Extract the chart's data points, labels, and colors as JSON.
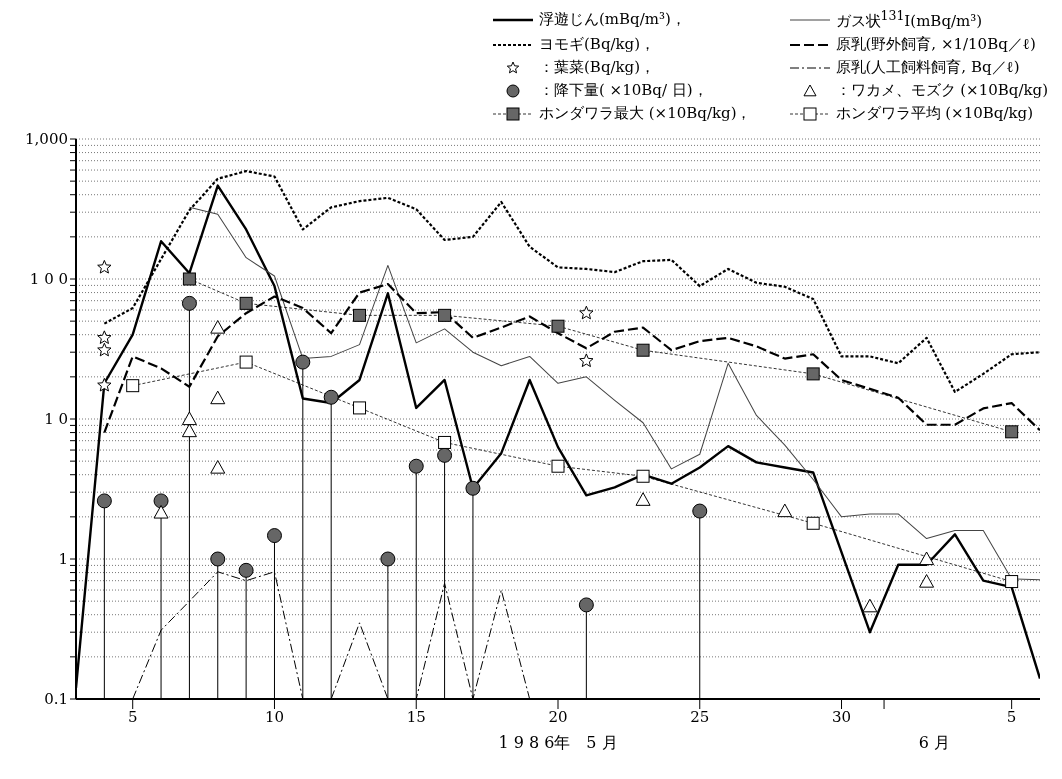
{
  "chart_data": {
    "type": "line",
    "xlabel": "1 9 8 6年　5 月",
    "annotations": [
      "6 月"
    ],
    "xlim": [
      "--05-03",
      "--06-06"
    ],
    "xticks": [
      {
        "value": "--05-05",
        "label": "5"
      },
      {
        "value": "--05-10",
        "label": "10"
      },
      {
        "value": "--05-15",
        "label": "15"
      },
      {
        "value": "--05-20",
        "label": "20"
      },
      {
        "value": "--05-25",
        "label": "25"
      },
      {
        "value": "--05-30",
        "label": "30"
      },
      {
        "value": "--05-31T12:00",
        "label": null
      },
      {
        "value": "--06-05",
        "label": "5"
      }
    ],
    "ylim": [
      0.1,
      1000
    ],
    "log": true,
    "grid": "y",
    "yticks": [
      {
        "value": 0.1,
        "label": "0.1"
      },
      {
        "value": 0.2,
        "label": null
      },
      {
        "value": 0.3,
        "label": null
      },
      {
        "value": 0.4,
        "label": null
      },
      {
        "value": 0.5,
        "label": null
      },
      {
        "value": 0.6,
        "label": null
      },
      {
        "value": 0.7,
        "label": null
      },
      {
        "value": 0.8,
        "label": null
      },
      {
        "value": 0.9,
        "label": null
      },
      1,
      {
        "value": 2,
        "label": null
      },
      {
        "value": 3,
        "label": null
      },
      {
        "value": 4,
        "label": null
      },
      {
        "value": 5,
        "label": null
      },
      {
        "value": 6,
        "label": null
      },
      {
        "value": 7,
        "label": null
      },
      {
        "value": 8,
        "label": null
      },
      {
        "value": 9,
        "label": null
      },
      {
        "value": 10,
        "label": "1 0"
      },
      {
        "value": 20,
        "label": null
      },
      {
        "value": 30,
        "label": null
      },
      {
        "value": 40,
        "label": null
      },
      {
        "value": 50,
        "label": null
      },
      {
        "value": 60,
        "label": null
      },
      {
        "value": 70,
        "label": null
      },
      {
        "value": 80,
        "label": null
      },
      {
        "value": 90,
        "label": null
      },
      {
        "value": 100,
        "label": "1 0 0"
      },
      {
        "value": 200,
        "label": null
      },
      {
        "value": 300,
        "label": null
      },
      {
        "value": 400,
        "label": null
      },
      {
        "value": 500,
        "label": null
      },
      {
        "value": 600,
        "label": null
      },
      {
        "value": 700,
        "label": null
      },
      {
        "value": 800,
        "label": null
      },
      {
        "value": 900,
        "label": null
      },
      {
        "value": 1000,
        "label": "1,000"
      }
    ],
    "legend": "top right",
    "series": [
      {
        "name": "浮遊じん(mBq/m³)，",
        "color": "#000000",
        "line_style": "solid",
        "x": [
          "--05-03",
          "--05-04",
          "--05-05",
          "--05-06",
          "--05-07",
          "--05-08",
          "--05-09",
          "--05-10",
          "--05-11",
          "--05-12",
          "--05-13",
          "--05-14",
          "--05-15",
          "--05-16",
          "--05-17",
          "--05-18",
          "--05-19",
          "--05-20",
          "--05-21",
          "--05-22",
          "--05-23",
          "--05-24",
          "--05-25",
          "--05-26",
          "--05-27",
          "--05-28",
          "--05-29",
          "--05-31",
          "--06-01",
          "--06-02",
          "--06-03",
          "--06-04",
          "--06-05",
          "--06-06"
        ],
        "values": [
          0.12,
          18,
          40,
          186,
          110,
          465,
          226,
          89,
          14,
          13,
          19,
          79,
          12,
          19,
          3.2,
          5.7,
          19,
          6.3,
          2.85,
          3.25,
          4.0,
          3.45,
          4.5,
          6.4,
          4.9,
          4.5,
          4.15,
          0.3,
          0.91,
          0.91,
          1.5,
          0.7,
          0.63,
          0.14
        ]
      },
      {
        "name": "ガス状$^{131}$I(mBq/m³)",
        "color": "#444444",
        "line_style": "solid",
        "x": [
          "--05-07",
          "--05-08",
          "--05-09",
          "--05-10",
          "--05-11",
          "--05-12",
          "--05-13",
          "--05-14",
          "--05-15",
          "--05-16",
          "--05-17",
          "--05-18",
          "--05-19",
          "--05-20",
          "--05-21",
          "--05-22",
          "--05-23",
          "--05-24",
          "--05-25",
          "--05-26",
          "--05-27",
          "--05-28",
          "--05-29",
          "--05-30",
          "--05-31",
          "--06-01",
          "--06-02",
          "--06-03",
          "--06-04",
          "--06-05",
          "--06-06"
        ],
        "values": [
          325,
          290,
          142,
          105,
          27,
          28,
          34,
          125,
          35,
          44,
          30,
          24,
          28,
          18,
          20,
          13.6,
          9.4,
          4.4,
          5.6,
          25,
          10.6,
          6.5,
          3.7,
          2.0,
          2.1,
          2.1,
          1.4,
          1.6,
          1.6,
          0.72,
          0.71
        ]
      },
      {
        "name": "ヨモギ(Bq/kg)，",
        "color": "#000000",
        "line_style": "dotted",
        "x": [
          "--05-04",
          "--05-05",
          "--05-07",
          "--05-08",
          "--05-09",
          "--05-10",
          "--05-11",
          "--05-12",
          "--05-13",
          "--05-14",
          "--05-15",
          "--05-16",
          "--05-17",
          "--05-18",
          "--05-19",
          "--05-20",
          "--05-21",
          "--05-22",
          "--05-23",
          "--05-24",
          "--05-25",
          "--05-26",
          "--05-27",
          "--05-28",
          "--05-29",
          "--05-30",
          "--05-31",
          "--06-01",
          "--06-02",
          "--06-03",
          "--06-04",
          "--06-05",
          "--06-06"
        ],
        "values": [
          48,
          62,
          310,
          520,
          590,
          540,
          226,
          325,
          360,
          380,
          315,
          190,
          200,
          355,
          170,
          121,
          118,
          112,
          134,
          137,
          89,
          118,
          94,
          88,
          72,
          28,
          28,
          25,
          38,
          15.6,
          21,
          29,
          30
        ]
      },
      {
        "name": "原乳(野外飼育, ×1/10Bq／ℓ)",
        "color": "#000000",
        "line_style": "dashed",
        "x": [
          "--05-04",
          "--05-05",
          "--05-06",
          "--05-07",
          "--05-08",
          "--05-09",
          "--05-10",
          "--05-11",
          "--05-12",
          "--05-13",
          "--05-14",
          "--05-15",
          "--05-16",
          "--05-17",
          "--05-18",
          "--05-19",
          "--05-20",
          "--05-21",
          "--05-22",
          "--05-23",
          "--05-24",
          "--05-25",
          "--05-26",
          "--05-27",
          "--05-28",
          "--05-29",
          "--05-30",
          "--05-31",
          "--06-01",
          "--06-02",
          "--06-03",
          "--06-04",
          "--06-05",
          "--06-06"
        ],
        "values": [
          8,
          28,
          23,
          17,
          39,
          57,
          75,
          62,
          41,
          80,
          92,
          57,
          58,
          38,
          45,
          54,
          41,
          32,
          42,
          45,
          31,
          36,
          38,
          33,
          27,
          29,
          19,
          16.4,
          14.2,
          9.1,
          9.1,
          11.9,
          13,
          8.3
        ]
      },
      {
        "name": "：葉菜(Bq/kg)，",
        "type": "scatter",
        "marker": "star",
        "color": "#ffffff",
        "x": [
          "--05-04",
          "--05-04",
          "--05-04",
          "--05-04",
          "--05-21",
          "--05-21"
        ],
        "values": [
          121,
          38,
          31,
          17.4,
          57,
          26
        ]
      },
      {
        "name": "原乳(人工飼料飼育, Bq／ℓ)",
        "color": "#000000",
        "line_style": "dashdot",
        "x": [
          "--05-05",
          "--05-06",
          "--05-07",
          "--05-08",
          "--05-09",
          "--05-10",
          "--05-11",
          "--05-12",
          "--05-13",
          "--05-14",
          "--05-15",
          "--05-16",
          "--05-17",
          "--05-18",
          "--05-19"
        ],
        "values": [
          0.1,
          0.31,
          0.5,
          0.81,
          0.7,
          0.81,
          0.1,
          0.1,
          0.35,
          0.1,
          0.1,
          0.67,
          0.1,
          0.6,
          0.1
        ]
      },
      {
        "name": "：降下量( ×10Bq/ 日)，",
        "type": "lollipop",
        "marker": "circle",
        "color": "#666666",
        "x": [
          "--05-04",
          "--05-06",
          "--05-07",
          "--05-08",
          "--05-09",
          "--05-10",
          "--05-11",
          "--05-12",
          "--05-14",
          "--05-15",
          "--05-16",
          "--05-17",
          "--05-21",
          "--05-25"
        ],
        "values": [
          2.6,
          2.6,
          67,
          1.0,
          0.83,
          1.47,
          25.5,
          14.3,
          1.0,
          4.6,
          5.5,
          3.2,
          0.47,
          2.2
        ]
      },
      {
        "name": "：ワカメ、モズク (×10Bq/kg)",
        "type": "scatter",
        "marker": "triangle",
        "color": "#ffffff",
        "x": [
          "--05-06",
          "--05-07",
          "--05-07",
          "--05-08",
          "--05-08",
          "--05-08",
          "--05-23",
          "--05-28",
          "--05-31",
          "--06-02",
          "--06-02"
        ],
        "values": [
          2.15,
          10,
          8.2,
          45,
          14.1,
          4.5,
          2.65,
          2.2,
          0.46,
          1.0,
          0.69
        ]
      },
      {
        "name": "ホンダワラ最大 (×10Bq/kg)，",
        "marker": "square",
        "color": "#666666",
        "line_style": "dotted",
        "x": [
          "--05-07",
          "--05-09",
          "--05-13",
          "--05-16",
          "--05-20",
          "--05-23",
          "--05-29",
          "--06-05"
        ],
        "values": [
          100,
          67,
          55,
          55,
          46,
          31,
          21,
          8.1
        ]
      },
      {
        "name": "ホンダワラ平均 (×10Bq/kg)",
        "marker": "square",
        "color": "#ffffff",
        "line_style": "dotted",
        "x": [
          "--05-05",
          "--05-09",
          "--05-13",
          "--05-16",
          "--05-20",
          "--05-23",
          "--05-29",
          "--06-05"
        ],
        "values": [
          17.3,
          25.5,
          12,
          6.8,
          4.6,
          3.9,
          1.8,
          0.69
        ]
      }
    ]
  }
}
